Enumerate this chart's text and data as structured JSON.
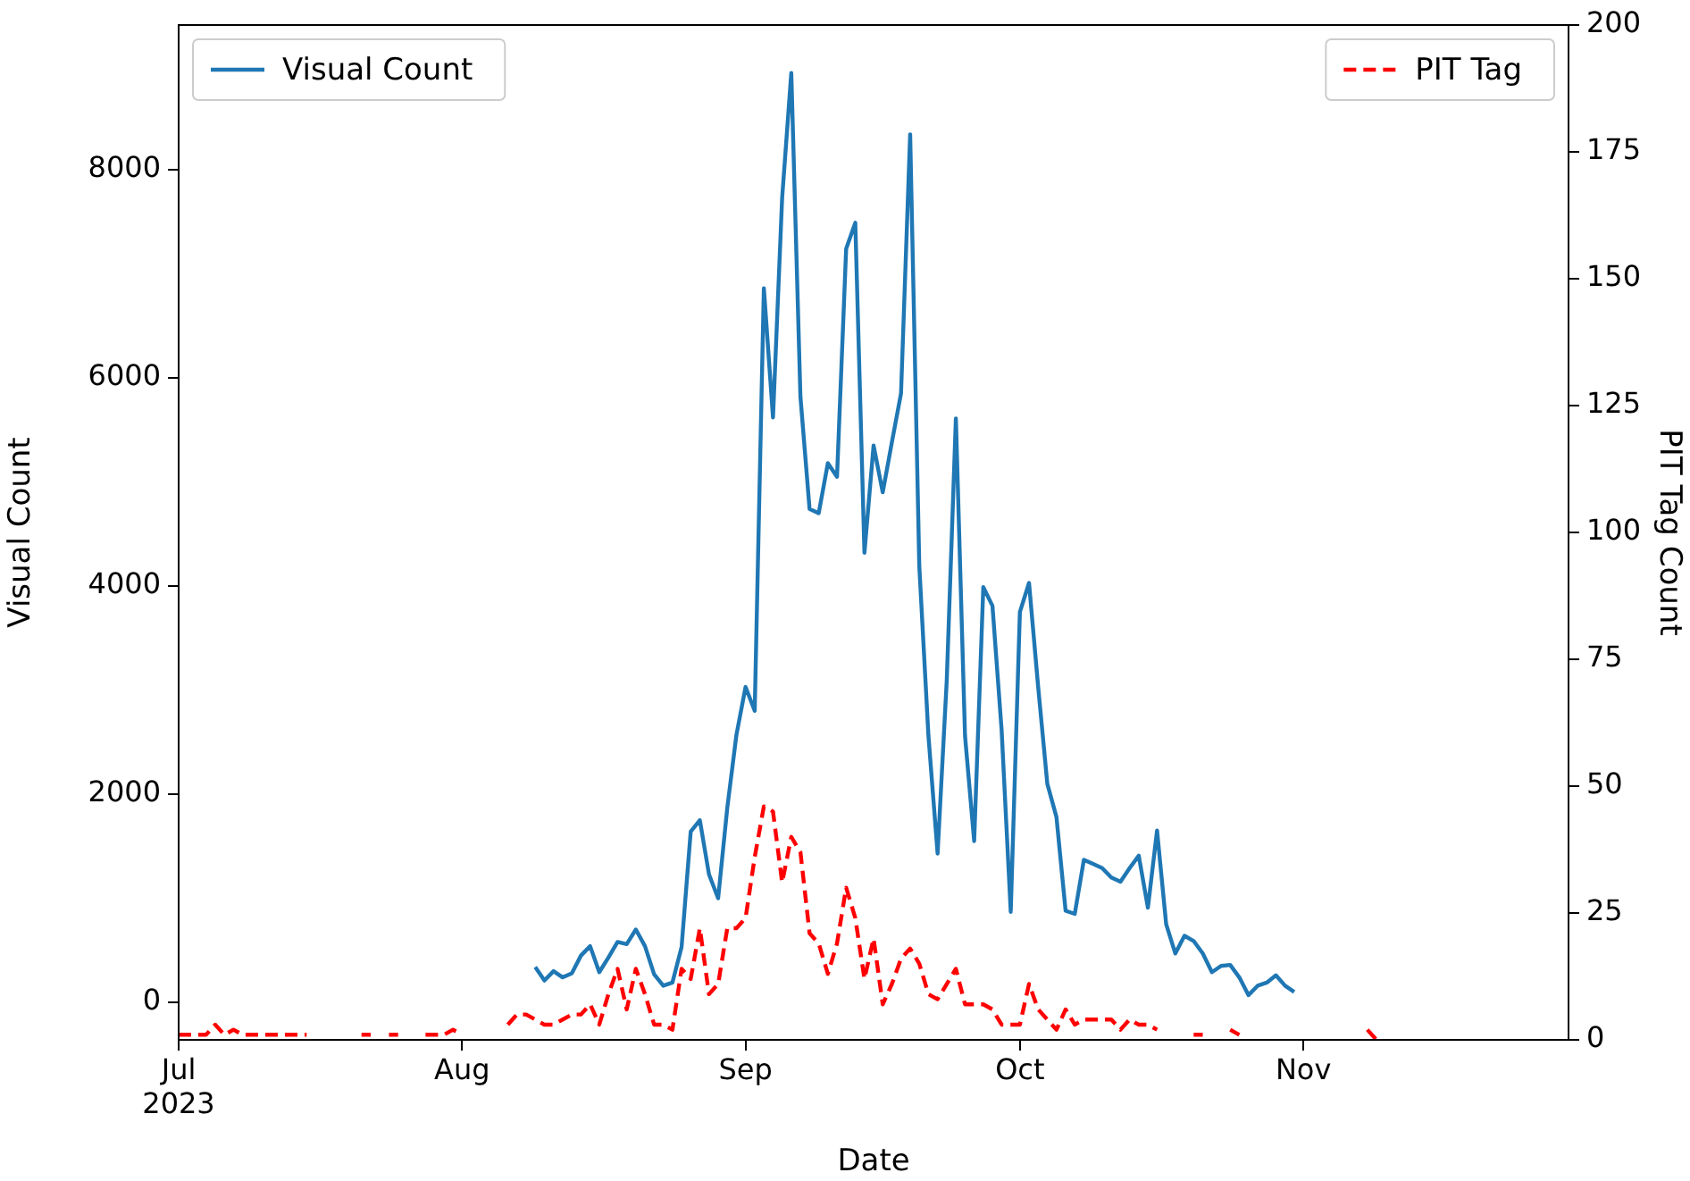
{
  "chart_data": {
    "type": "line",
    "xlabel": "Date",
    "ylabel": "Visual Count",
    "y2label": "PIT Tag Count",
    "x": [
      "2023-07-01",
      "2023-07-02",
      "2023-07-03",
      "2023-07-04",
      "2023-07-05",
      "2023-07-06",
      "2023-07-07",
      "2023-07-08",
      "2023-07-09",
      "2023-07-10",
      "2023-07-11",
      "2023-07-12",
      "2023-07-13",
      "2023-07-14",
      "2023-07-15",
      "2023-07-16",
      "2023-07-17",
      "2023-07-18",
      "2023-07-19",
      "2023-07-20",
      "2023-07-21",
      "2023-07-22",
      "2023-07-23",
      "2023-07-24",
      "2023-07-25",
      "2023-07-26",
      "2023-07-27",
      "2023-07-28",
      "2023-07-29",
      "2023-07-30",
      "2023-07-31",
      "2023-08-01",
      "2023-08-02",
      "2023-08-03",
      "2023-08-04",
      "2023-08-05",
      "2023-08-06",
      "2023-08-07",
      "2023-08-08",
      "2023-08-09",
      "2023-08-10",
      "2023-08-11",
      "2023-08-12",
      "2023-08-13",
      "2023-08-14",
      "2023-08-15",
      "2023-08-16",
      "2023-08-17",
      "2023-08-18",
      "2023-08-19",
      "2023-08-20",
      "2023-08-21",
      "2023-08-22",
      "2023-08-23",
      "2023-08-24",
      "2023-08-25",
      "2023-08-26",
      "2023-08-27",
      "2023-08-28",
      "2023-08-29",
      "2023-08-30",
      "2023-08-31",
      "2023-09-01",
      "2023-09-02",
      "2023-09-03",
      "2023-09-04",
      "2023-09-05",
      "2023-09-06",
      "2023-09-07",
      "2023-09-08",
      "2023-09-09",
      "2023-09-10",
      "2023-09-11",
      "2023-09-12",
      "2023-09-13",
      "2023-09-14",
      "2023-09-15",
      "2023-09-16",
      "2023-09-17",
      "2023-09-18",
      "2023-09-19",
      "2023-09-20",
      "2023-09-21",
      "2023-09-22",
      "2023-09-23",
      "2023-09-24",
      "2023-09-25",
      "2023-09-26",
      "2023-09-27",
      "2023-09-28",
      "2023-09-29",
      "2023-09-30",
      "2023-10-01",
      "2023-10-02",
      "2023-10-03",
      "2023-10-04",
      "2023-10-05",
      "2023-10-06",
      "2023-10-07",
      "2023-10-08",
      "2023-10-09",
      "2023-10-10",
      "2023-10-11",
      "2023-10-12",
      "2023-10-13",
      "2023-10-14",
      "2023-10-15",
      "2023-10-16",
      "2023-10-17",
      "2023-10-18",
      "2023-10-19",
      "2023-10-20",
      "2023-10-21",
      "2023-10-22",
      "2023-10-23",
      "2023-10-24",
      "2023-10-25",
      "2023-10-26",
      "2023-10-27",
      "2023-10-28",
      "2023-10-29",
      "2023-10-30",
      "2023-10-31",
      "2023-11-01",
      "2023-11-02",
      "2023-11-03",
      "2023-11-04",
      "2023-11-05",
      "2023-11-06",
      "2023-11-07",
      "2023-11-08",
      "2023-11-09"
    ],
    "series": [
      {
        "name": "Visual Count",
        "color": "#1f77b4",
        "line_style": "solid",
        "values": [
          null,
          null,
          null,
          null,
          null,
          null,
          null,
          null,
          null,
          null,
          null,
          null,
          null,
          null,
          null,
          null,
          null,
          null,
          null,
          null,
          null,
          null,
          null,
          null,
          null,
          null,
          null,
          null,
          null,
          null,
          null,
          null,
          null,
          null,
          null,
          null,
          null,
          null,
          null,
          340,
          210,
          300,
          240,
          280,
          450,
          540,
          290,
          430,
          580,
          560,
          700,
          540,
          270,
          160,
          190,
          530,
          1640,
          1750,
          1230,
          1000,
          1870,
          2570,
          3030,
          2800,
          6860,
          5620,
          7730,
          8930,
          5820,
          4740,
          4700,
          5180,
          5050,
          7240,
          7490,
          4320,
          5350,
          4900,
          5380,
          5850,
          8340,
          4190,
          2560,
          1430,
          3090,
          5610,
          2560,
          1550,
          3990,
          3810,
          2620,
          870,
          3750,
          4030,
          3030,
          2100,
          1780,
          880,
          850,
          1370,
          1330,
          1290,
          1200,
          1160,
          1290,
          1410,
          910,
          1650,
          750,
          470,
          640,
          590,
          470,
          290,
          350,
          360,
          240,
          70,
          160,
          190,
          260,
          160,
          100,
          null,
          null,
          null,
          null,
          null,
          null,
          null,
          null,
          null
        ]
      },
      {
        "name": "PIT Tag",
        "color": "#ff0000",
        "axis": "y2",
        "line_style": "dashed",
        "values": [
          1,
          1,
          1,
          1,
          3,
          1,
          2,
          1,
          1,
          1,
          1,
          1,
          1,
          1,
          1,
          null,
          null,
          null,
          null,
          null,
          1,
          1,
          null,
          1,
          1,
          null,
          null,
          1,
          1,
          1,
          2,
          1,
          null,
          null,
          null,
          null,
          3,
          5,
          5,
          4,
          3,
          3,
          4,
          5,
          5,
          7,
          3,
          9,
          14,
          6,
          14,
          9,
          3,
          3,
          2,
          14,
          12,
          22,
          9,
          11,
          22,
          22,
          24,
          36,
          46,
          45,
          31,
          40,
          37,
          21,
          19,
          13,
          19,
          30,
          24,
          12,
          20,
          7,
          11,
          16,
          18,
          15,
          9,
          8,
          11,
          14,
          7,
          7,
          7,
          6,
          3,
          3,
          3,
          11,
          6,
          4,
          2,
          6,
          3,
          4,
          4,
          4,
          4,
          2,
          4,
          3,
          3,
          2,
          null,
          null,
          null,
          1,
          1,
          null,
          null,
          2,
          1,
          null,
          null,
          null,
          null,
          null,
          null,
          null,
          null,
          null,
          null,
          null,
          null,
          null,
          2,
          0
        ]
      }
    ],
    "xlim": [
      "2023-07-01",
      "2023-11-30"
    ],
    "xticks": [
      {
        "value": "2023-07-01",
        "label": "Jul\n2023"
      },
      {
        "value": "2023-08-01",
        "label": "Aug"
      },
      {
        "value": "2023-09-01",
        "label": "Sep"
      },
      {
        "value": "2023-10-01",
        "label": "Oct"
      },
      {
        "value": "2023-11-01",
        "label": "Nov"
      }
    ],
    "ylim": [
      -360,
      9390
    ],
    "yticks": [
      0,
      2000,
      4000,
      6000,
      8000
    ],
    "y2lim": [
      0,
      200
    ],
    "y2ticks": [
      0,
      25,
      50,
      75,
      100,
      125,
      150,
      175,
      200
    ],
    "legend": "top",
    "grid": false,
    "marker": "none"
  }
}
